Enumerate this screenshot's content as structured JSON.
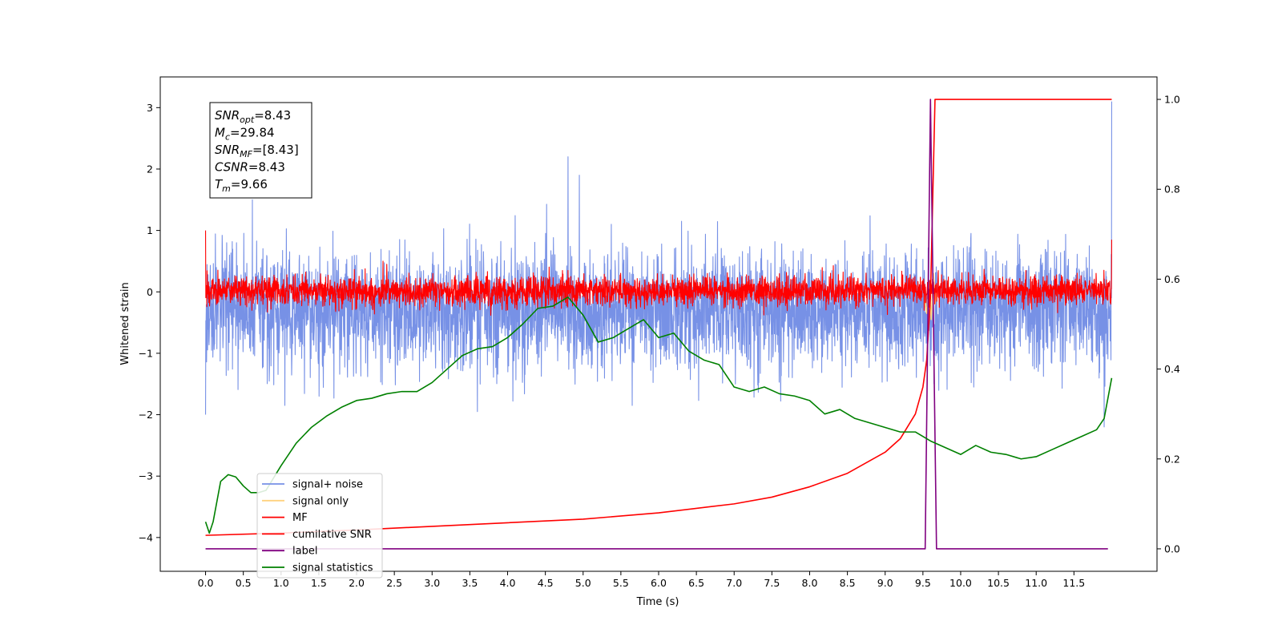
{
  "chart_data": {
    "type": "line",
    "xlabel": "Time (s)",
    "ylabel": "Whitened strain",
    "xlim": [
      -0.6,
      12.6
    ],
    "ylim": [
      -4.55,
      3.5
    ],
    "y2lim": [
      -0.05,
      1.05
    ],
    "xticks": [
      "0.0",
      "0.5",
      "1.0",
      "1.5",
      "2.0",
      "2.5",
      "3.0",
      "3.5",
      "4.0",
      "4.5",
      "5.0",
      "5.5",
      "6.0",
      "6.5",
      "7.0",
      "7.5",
      "8.0",
      "8.5",
      "9.0",
      "9.5",
      "10.0",
      "10.5",
      "11.0",
      "11.5"
    ],
    "yticks": [
      "3",
      "2",
      "1",
      "0",
      "−1",
      "−2",
      "−3",
      "−4"
    ],
    "y2ticks": [
      "1.0",
      "0.8",
      "0.6",
      "0.4",
      "0.2",
      "0.0"
    ],
    "annotation": [
      {
        "main": "SNR",
        "sub": "opt",
        "rest": "=8.43"
      },
      {
        "main": "M",
        "sub": "c",
        "rest": "=29.84"
      },
      {
        "main": "SNR",
        "sub": "MF",
        "rest": "=[8.43]"
      },
      {
        "main": "CSNR",
        "sub": "",
        "rest": "=8.43"
      },
      {
        "main": "T",
        "sub": "m",
        "rest": "=9.66"
      }
    ],
    "legend_position": "lower-left",
    "legend": [
      {
        "label": "signal+ noise",
        "color": "#7791e6"
      },
      {
        "label": "signal only",
        "color": "#ffd27f"
      },
      {
        "label": "MF",
        "color": "#ff0000"
      },
      {
        "label": "cumilative SNR",
        "color": "#ff0000"
      },
      {
        "label": "label",
        "color": "#800080"
      },
      {
        "label": "signal statistics",
        "color": "#008000"
      }
    ],
    "series": [
      {
        "name": "signal+ noise",
        "axis": "left",
        "style": "noise",
        "x_range": [
          0,
          12
        ],
        "mean": -0.3,
        "amplitude": 0.55,
        "extremes": [
          [
            0.0,
            -2.0
          ],
          [
            0.62,
            1.5
          ],
          [
            1.05,
            -1.85
          ],
          [
            3.6,
            -1.95
          ],
          [
            4.8,
            2.2
          ],
          [
            4.95,
            1.9
          ],
          [
            5.65,
            -1.85
          ],
          [
            11.9,
            -2.2
          ],
          [
            12.0,
            3.1
          ]
        ]
      },
      {
        "name": "signal only",
        "axis": "left",
        "style": "line",
        "x": [
          9.52,
          9.55,
          9.58,
          9.61,
          9.64,
          9.66,
          9.68
        ],
        "y": [
          -0.1,
          -0.35,
          0.15,
          -0.45,
          0.3,
          -0.2,
          0.0
        ]
      },
      {
        "name": "MF",
        "axis": "left",
        "style": "noise",
        "x_range": [
          0,
          12
        ],
        "mean": 0.02,
        "amplitude": 0.14,
        "extremes": [
          [
            0.0,
            1.0
          ],
          [
            2.35,
            0.5
          ],
          [
            2.4,
            0.45
          ],
          [
            12.0,
            0.85
          ]
        ]
      },
      {
        "name": "cumilative SNR",
        "axis": "right",
        "x": [
          0.0,
          1.0,
          2.0,
          3.0,
          4.0,
          5.0,
          6.0,
          7.0,
          7.5,
          8.0,
          8.5,
          9.0,
          9.2,
          9.4,
          9.5,
          9.55,
          9.6,
          9.63,
          9.66,
          12.0
        ],
        "y": [
          0.03,
          0.035,
          0.042,
          0.05,
          0.058,
          0.066,
          0.08,
          0.1,
          0.115,
          0.138,
          0.168,
          0.215,
          0.245,
          0.3,
          0.36,
          0.42,
          0.56,
          0.78,
          1.0,
          1.0
        ]
      },
      {
        "name": "label",
        "axis": "right",
        "x": [
          0.0,
          9.53,
          9.6,
          9.68,
          11.95
        ],
        "y": [
          0.0,
          0.0,
          1.0,
          0.0,
          0.0
        ]
      },
      {
        "name": "signal statistics",
        "axis": "right",
        "x": [
          0.0,
          0.05,
          0.1,
          0.2,
          0.3,
          0.4,
          0.5,
          0.6,
          0.7,
          0.8,
          1.0,
          1.2,
          1.4,
          1.6,
          1.8,
          2.0,
          2.2,
          2.4,
          2.6,
          2.8,
          3.0,
          3.2,
          3.4,
          3.6,
          3.8,
          4.0,
          4.2,
          4.4,
          4.6,
          4.8,
          5.0,
          5.2,
          5.4,
          5.6,
          5.8,
          6.0,
          6.2,
          6.4,
          6.6,
          6.8,
          7.0,
          7.2,
          7.4,
          7.6,
          7.8,
          8.0,
          8.2,
          8.4,
          8.6,
          8.8,
          9.0,
          9.2,
          9.4,
          9.6,
          9.8,
          10.0,
          10.2,
          10.4,
          10.6,
          10.8,
          11.0,
          11.2,
          11.4,
          11.6,
          11.8,
          11.9,
          12.0
        ],
        "y": [
          0.06,
          0.035,
          0.06,
          0.15,
          0.165,
          0.16,
          0.14,
          0.125,
          0.125,
          0.13,
          0.185,
          0.235,
          0.27,
          0.295,
          0.315,
          0.33,
          0.335,
          0.345,
          0.35,
          0.35,
          0.37,
          0.4,
          0.43,
          0.445,
          0.45,
          0.47,
          0.5,
          0.535,
          0.54,
          0.56,
          0.52,
          0.46,
          0.47,
          0.49,
          0.51,
          0.47,
          0.48,
          0.44,
          0.42,
          0.41,
          0.36,
          0.35,
          0.36,
          0.345,
          0.34,
          0.33,
          0.3,
          0.31,
          0.29,
          0.28,
          0.27,
          0.26,
          0.26,
          0.24,
          0.225,
          0.21,
          0.23,
          0.215,
          0.21,
          0.2,
          0.205,
          0.22,
          0.235,
          0.25,
          0.265,
          0.29,
          0.38
        ]
      }
    ]
  }
}
